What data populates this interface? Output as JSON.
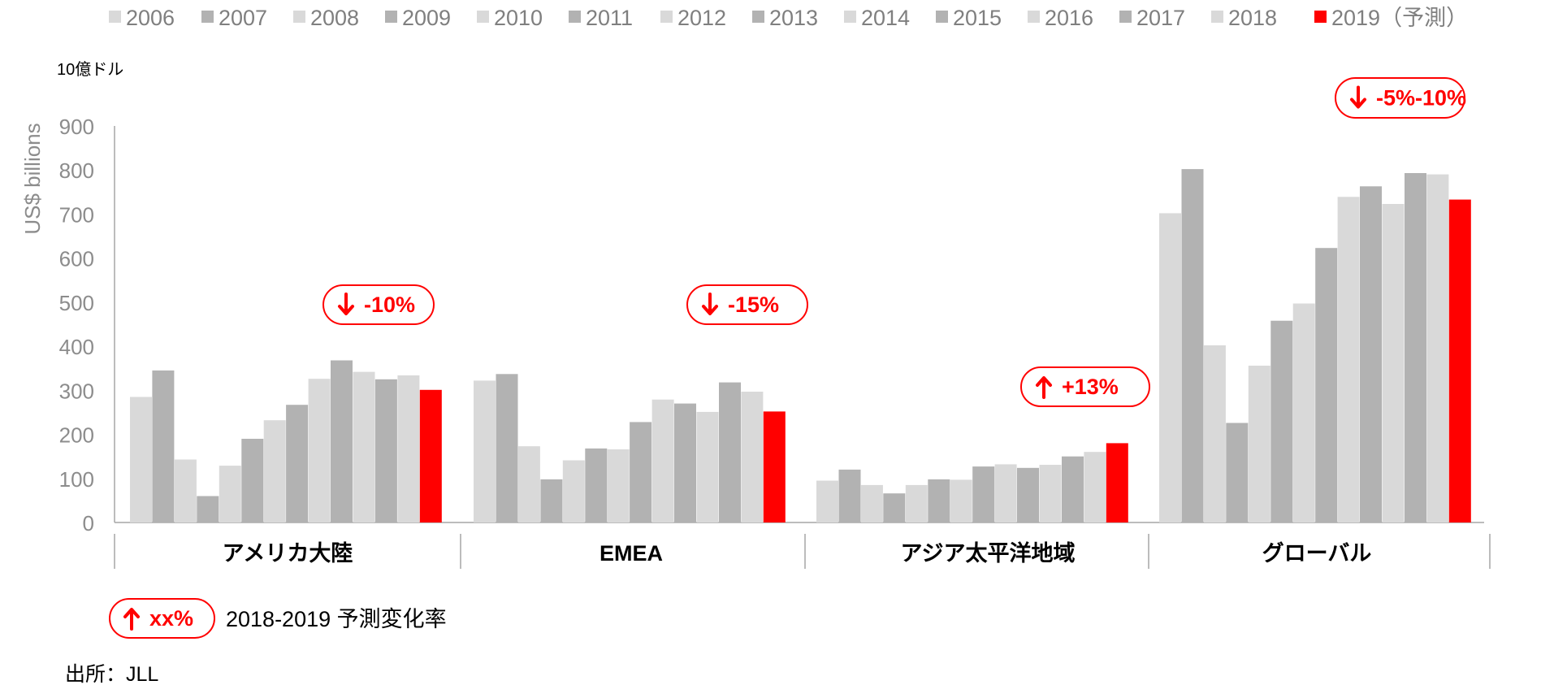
{
  "chart_data": {
    "type": "bar",
    "unit_label": "10億ドル",
    "ylabel": "US$ billions",
    "ylim": [
      0,
      900
    ],
    "yticks": [
      0,
      100,
      200,
      300,
      400,
      500,
      600,
      700,
      800,
      900
    ],
    "grid": false,
    "legend_position": "top",
    "categories": [
      "アメリカ大陸",
      "EMEA",
      "アジア太平洋地域",
      "グローバル"
    ],
    "series": [
      {
        "name": "2006",
        "values": [
          285,
          322,
          95,
          702
        ],
        "color": "#d9d9d9"
      },
      {
        "name": "2007",
        "values": [
          345,
          337,
          120,
          802
        ],
        "color": "#b2b2b2"
      },
      {
        "name": "2008",
        "values": [
          143,
          173,
          85,
          402
        ],
        "color": "#d9d9d9"
      },
      {
        "name": "2009",
        "values": [
          60,
          98,
          66,
          226
        ],
        "color": "#b2b2b2"
      },
      {
        "name": "2010",
        "values": [
          129,
          141,
          85,
          356
        ],
        "color": "#d9d9d9"
      },
      {
        "name": "2011",
        "values": [
          190,
          168,
          98,
          458
        ],
        "color": "#b2b2b2"
      },
      {
        "name": "2012",
        "values": [
          232,
          166,
          97,
          497
        ],
        "color": "#d9d9d9"
      },
      {
        "name": "2013",
        "values": [
          267,
          228,
          127,
          623
        ],
        "color": "#b2b2b2"
      },
      {
        "name": "2014",
        "values": [
          326,
          279,
          132,
          739
        ],
        "color": "#d9d9d9"
      },
      {
        "name": "2015",
        "values": [
          368,
          270,
          124,
          763
        ],
        "color": "#b2b2b2"
      },
      {
        "name": "2016",
        "values": [
          342,
          251,
          131,
          723
        ],
        "color": "#d9d9d9"
      },
      {
        "name": "2017",
        "values": [
          325,
          318,
          150,
          793
        ],
        "color": "#b2b2b2"
      },
      {
        "name": "2018",
        "values": [
          334,
          297,
          160,
          790
        ],
        "color": "#d9d9d9"
      },
      {
        "name": "2019（予測）",
        "values": [
          301,
          252,
          180,
          733
        ],
        "color": "#ff0000"
      }
    ],
    "annotations": [
      {
        "category": "アメリカ大陸",
        "direction": "down",
        "label": "-10%"
      },
      {
        "category": "EMEA",
        "direction": "down",
        "label": "-15%"
      },
      {
        "category": "アジア太平洋地域",
        "direction": "up",
        "label": "+13%"
      },
      {
        "category": "グローバル",
        "direction": "down",
        "label": "-5%-10%"
      }
    ],
    "key": {
      "sample": "xx%",
      "direction": "up",
      "text": "2018-2019 予測変化率"
    },
    "source": "出所：JLL",
    "colors": {
      "accent": "#ff0000",
      "light_bar": "#d9d9d9",
      "dark_bar": "#b2b2b2",
      "axis_text": "#7f7f7f"
    }
  }
}
